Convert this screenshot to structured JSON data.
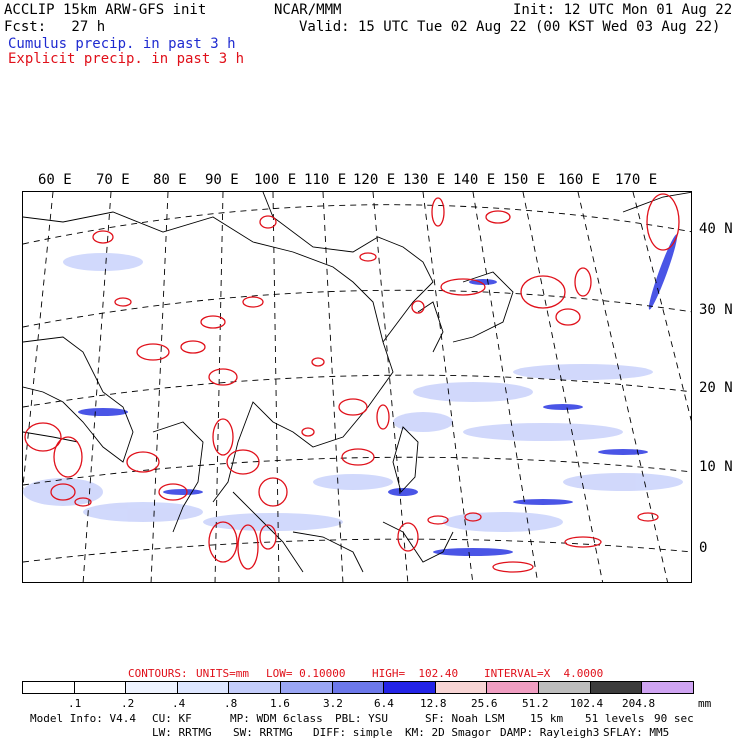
{
  "header": {
    "line1_left": "ACCLIP 15km ARW-GFS init",
    "line1_center": "NCAR/MMM",
    "line1_right": "Init: 12 UTC Mon 01 Aug 22",
    "line2_left": "Fcst:   27 h",
    "line2_right": "Valid: 15 UTC Tue 02 Aug 22 (00 KST Wed 03 Aug 22)",
    "legend_cumulus": "Cumulus precip. in past 3 h",
    "legend_explicit": "Explicit precip. in past 3 h"
  },
  "map": {
    "longitude_labels": [
      "60 E",
      "70 E",
      "80 E",
      "90 E",
      "100 E",
      "110 E",
      "120 E",
      "130 E",
      "140 E",
      "150 E",
      "160 E",
      "170 E"
    ],
    "latitude_labels": [
      "40 N",
      "30 N",
      "20 N",
      "10 N",
      "0"
    ]
  },
  "contours": {
    "label": "CONTOURS:",
    "units": "UNITS=mm",
    "low": "LOW= 0.10000",
    "high": "HIGH=  102.40",
    "interval": "INTERVAL=X  4.0000"
  },
  "colorbar": {
    "tick_labels": [
      ".1",
      ".2",
      ".4",
      ".8",
      "1.6",
      "3.2",
      "6.4",
      "12.8",
      "25.6",
      "51.2",
      "102.4",
      "204.8"
    ],
    "unit": "mm",
    "colors": [
      "#ffffff",
      "#ffffff",
      "#eef3ff",
      "#dde6ff",
      "#c4cdfb",
      "#9aa6f4",
      "#6c78ea",
      "#2323e6",
      "#f7d4d4",
      "#f09ec2",
      "#bdbdbd",
      "#3c3c3c",
      "#cfa4f2"
    ]
  },
  "footer": {
    "line1": [
      {
        "key": "model_info",
        "text": "Model Info: V4.4"
      },
      {
        "key": "cu",
        "text": "CU: KF"
      },
      {
        "key": "mp",
        "text": "MP: WDM 6class"
      },
      {
        "key": "pbl",
        "text": "PBL: YSU"
      },
      {
        "key": "sf",
        "text": "SF: Noah LSM"
      },
      {
        "key": "res",
        "text": "15 km"
      },
      {
        "key": "levels",
        "text": "51 levels"
      },
      {
        "key": "dt",
        "text": "90 sec"
      }
    ],
    "line2": [
      {
        "key": "lw",
        "text": "LW: RRTMG"
      },
      {
        "key": "sw",
        "text": "SW: RRTMG"
      },
      {
        "key": "diff",
        "text": "DIFF: simple"
      },
      {
        "key": "km",
        "text": "KM: 2D Smagor"
      },
      {
        "key": "damp",
        "text": "DAMP: Rayleigh3"
      },
      {
        "key": "sflay",
        "text": "SFLAY: MM5"
      }
    ]
  }
}
